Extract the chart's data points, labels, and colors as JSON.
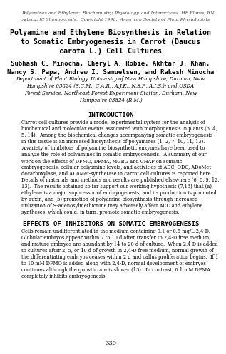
{
  "header_line1": "Polyamines and Ethylene:  Biochemistry, Physiology, and Interactions, HE Flores, RN",
  "header_line2": "Arteca, JC Shannon, eds.  Copyright 1990,  American Society of Plant Physiologists",
  "title_line1": "Polyamine and Ethylene Biosynthesis in Relation",
  "title_line2": "to Somatic Embryogenesis in Carrot (Daucus",
  "title_line3": "carota L.) Cell Cultures",
  "authors_line1": "Subhash C. Minocha, Cheryl A. Robie, Akhtar J. Khan,",
  "authors_line2": "Nancy S. Papa, Andrew I. Samuelsen, and Rakesh Minocha",
  "affil1": "Department of Plant Biology, University of New Hampshire, Durham, New",
  "affil2": "Hampshire 03824 (S.C.M., C.A.R., A.J.K., N.S.P., A.I.S.); and USDA",
  "affil3": "Forest Service, Northeast Forest Experiment Station, Durham, New",
  "affil4": "Hampshire 03824 (R.M.)",
  "section1_title": "INTRODUCTION",
  "intro_lines": [
    "Carrot cell cultures provide a model experimental system for the analysis of",
    "biochemical and molecular events associated with morphogenesis in plants (3, 4,",
    "5, 14).  Among the biochemical changes accompanying somatic embryogenesis",
    "in this tissue is an increased biosynthesis of polyamines (1, 2, 7, 10, 11, 13).",
    "A variety of inhibitors of polyamine biosynthetic enzymes have been used to",
    "analyze the role of polyamines in somatic embryogenesis.  A summary of our",
    "work on the effects of DFMO, DFMA, MGBG and CHAP on somatic",
    "embryogenesis, cellular polyamine levels, and activities of ADC, ODC, ADoMet",
    "decarboxylase, and ADoMet-synthetase in carrot cell cultures is reported here.",
    "Details of materials and methods and results are published elsewhere (6, 8, 9, 12,",
    "13).  The results obtained so far support our working hypothesis (7,13) that (a)",
    "ethylene is a major suppressor of embryogenesis, and its production is promoted",
    "by auxin; and (b) promotion of polyamine biosynthesis through increased",
    "utilization of S-adenosylmethionine may adversely affect ACC and ethylene",
    "syntheses, which could, in turn, promote somatic embryogenesis."
  ],
  "section2_title": "EFFECTS OF INHIBITORS ON SOMATIC EMBRYOGENESIS",
  "effects_lines": [
    "Cells remain undifferentiated in the medium containing 0.1 or 0.5 mg/L 2,4-D.",
    "Globular embryos appear within 7 to 10 d after transfer to 2,4-D free medium,",
    "and mature embryos are abundant by 14 to 20 d of culture.  When 2,4-D is added",
    "to cultures after 2, 5, or 10 d of growth in 2,4-D free medium, normal growth of",
    "the differentiating embryos ceases within 2 d and callus proliferation begins.  If 1",
    "to 10 mM DFMO is added along with 2,4-D, normal development of embryos",
    "continues although the growth rate is slower (13).  In contrast, 0.1 mM DFMA",
    "completely inhibits embryogenesis."
  ],
  "page_number": "339",
  "bg_color": "#ffffff",
  "text_color": "#000000"
}
